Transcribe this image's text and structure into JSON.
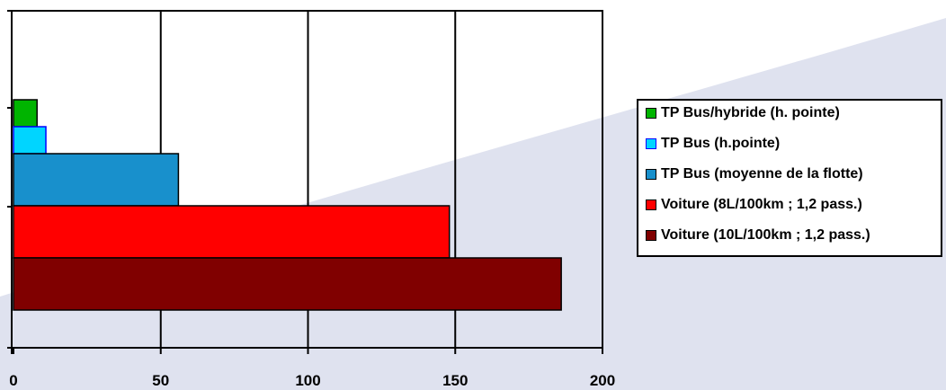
{
  "chart_data": {
    "type": "bar",
    "orientation": "horizontal",
    "title": "",
    "xlabel": "",
    "ylabel": "",
    "xlim": [
      0,
      200
    ],
    "x_ticks": [
      0,
      50,
      100,
      150,
      200
    ],
    "grid": true,
    "legend_position": "right",
    "series": [
      {
        "name": "TP Bus/hybride (h. pointe)",
        "value": 8,
        "color": "#00b400",
        "edge": "#000000"
      },
      {
        "name": "TP Bus (h.pointe)",
        "value": 11,
        "color": "#00d5ff",
        "edge": "#0000ff"
      },
      {
        "name": "TP Bus (moyenne de la flotte)",
        "value": 56,
        "color": "#1890cc",
        "edge": "#000000"
      },
      {
        "name": "Voiture (8L/100km ; 1,2 pass.)",
        "value": 148,
        "color": "#ff0000",
        "edge": "#000000"
      },
      {
        "name": "Voiture (10L/100km ; 1,2 pass.)",
        "value": 186,
        "color": "#800000",
        "edge": "#000000"
      }
    ],
    "background_swoosh_color": "#dfe2ef"
  }
}
